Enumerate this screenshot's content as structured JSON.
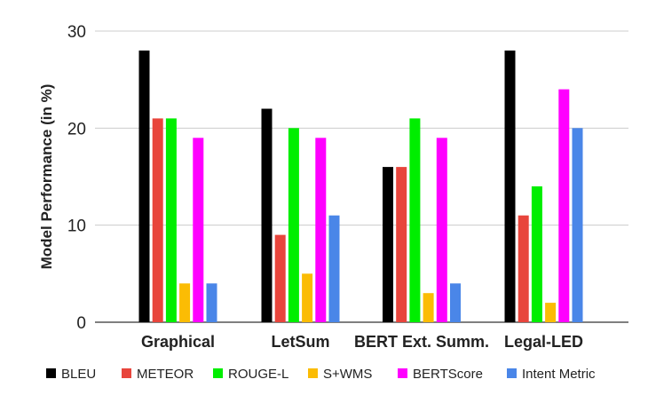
{
  "chart_data": {
    "type": "bar",
    "title": "",
    "xlabel": "",
    "ylabel": "Model Performance (in %)",
    "ylim": [
      0,
      30
    ],
    "yticks": [
      "0",
      "10",
      "20",
      "30"
    ],
    "grid": true,
    "legend_position": "bottom",
    "categories": [
      "Graphical",
      "LetSum",
      "BERT Ext. Summ.",
      "Legal-LED"
    ],
    "series": [
      {
        "name": "BLEU",
        "color": "#000000",
        "values": [
          28,
          22,
          16,
          28
        ]
      },
      {
        "name": "METEOR",
        "color": "#e8453c",
        "values": [
          21,
          9,
          16,
          11
        ]
      },
      {
        "name": "ROUGE-L",
        "color": "#00ee00",
        "values": [
          21,
          20,
          21,
          14
        ]
      },
      {
        "name": "S+WMS",
        "color": "#fbbc04",
        "values": [
          4,
          5,
          3,
          2
        ]
      },
      {
        "name": "BERTScore",
        "color": "#ff00ff",
        "values": [
          19,
          19,
          19,
          24
        ]
      },
      {
        "name": "Intent Metric",
        "color": "#4a86e8",
        "values": [
          4,
          11,
          4,
          20
        ]
      }
    ]
  }
}
